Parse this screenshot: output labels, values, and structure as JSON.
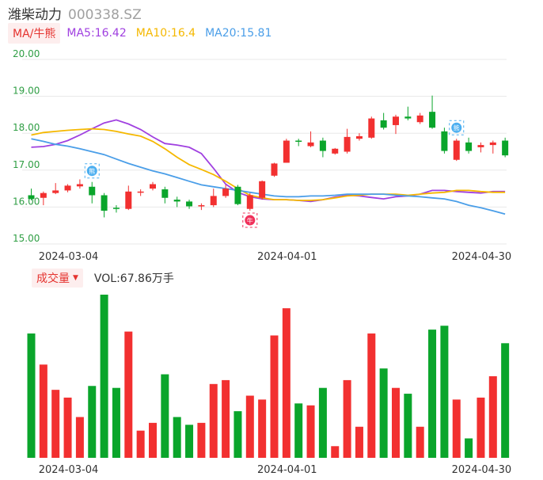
{
  "header": {
    "stock_name": "潍柴动力",
    "stock_code": "000338.SZ"
  },
  "ma_legend": {
    "label": "MA/牛熊",
    "ma5": "MA5:16.42",
    "ma10": "MA10:16.4",
    "ma20": "MA20:15.81",
    "ma5_color": "#a040e0",
    "ma10_color": "#f5b800",
    "ma20_color": "#4a9ee8"
  },
  "volume_legend": {
    "label": "成交量",
    "value": "VOL:67.86万手"
  },
  "colors": {
    "up": "#f23030",
    "down": "#0aa52b"
  },
  "signals": [
    {
      "index": 5,
      "text": "熊",
      "color": "#4aaef0"
    },
    {
      "index": 18,
      "text": "牛",
      "color": "#f0305a"
    },
    {
      "index": 35,
      "text": "熊",
      "color": "#4aaef0"
    }
  ],
  "chart_data": [
    {
      "type": "candlestick",
      "y_ticks": [
        "20.00",
        "19.00",
        "18.00",
        "17.00",
        "16.00",
        "15.00"
      ],
      "ylim": [
        15,
        20
      ],
      "x_tick_labels": [
        "2024-03-04",
        "2024-04-01",
        "2024-04-30"
      ],
      "x_tick_indices": [
        0,
        18,
        34
      ],
      "candles": [
        {
          "o": 16.32,
          "h": 16.5,
          "l": 16.18,
          "c": 16.22
        },
        {
          "o": 16.25,
          "h": 16.42,
          "l": 16.05,
          "c": 16.38
        },
        {
          "o": 16.38,
          "h": 16.65,
          "l": 16.35,
          "c": 16.45
        },
        {
          "o": 16.45,
          "h": 16.62,
          "l": 16.4,
          "c": 16.58
        },
        {
          "o": 16.56,
          "h": 16.75,
          "l": 16.5,
          "c": 16.62
        },
        {
          "o": 16.55,
          "h": 16.68,
          "l": 16.1,
          "c": 16.32
        },
        {
          "o": 16.32,
          "h": 16.38,
          "l": 15.72,
          "c": 15.9
        },
        {
          "o": 15.98,
          "h": 16.05,
          "l": 15.85,
          "c": 15.95
        },
        {
          "o": 15.95,
          "h": 16.58,
          "l": 15.92,
          "c": 16.42
        },
        {
          "o": 16.4,
          "h": 16.48,
          "l": 16.3,
          "c": 16.42
        },
        {
          "o": 16.5,
          "h": 16.68,
          "l": 16.45,
          "c": 16.62
        },
        {
          "o": 16.48,
          "h": 16.55,
          "l": 16.1,
          "c": 16.25
        },
        {
          "o": 16.2,
          "h": 16.28,
          "l": 16.0,
          "c": 16.15
        },
        {
          "o": 16.15,
          "h": 16.2,
          "l": 15.95,
          "c": 16.02
        },
        {
          "o": 16.05,
          "h": 16.1,
          "l": 15.92,
          "c": 16.05
        },
        {
          "o": 16.05,
          "h": 16.5,
          "l": 16.0,
          "c": 16.3
        },
        {
          "o": 16.3,
          "h": 16.6,
          "l": 16.25,
          "c": 16.5
        },
        {
          "o": 16.55,
          "h": 16.6,
          "l": 16.05,
          "c": 16.08
        },
        {
          "o": 15.95,
          "h": 16.38,
          "l": 15.9,
          "c": 16.32
        },
        {
          "o": 16.25,
          "h": 16.72,
          "l": 16.2,
          "c": 16.7
        },
        {
          "o": 16.85,
          "h": 17.2,
          "l": 16.82,
          "c": 17.18
        },
        {
          "o": 17.2,
          "h": 17.85,
          "l": 17.2,
          "c": 17.8
        },
        {
          "o": 17.8,
          "h": 17.85,
          "l": 17.65,
          "c": 17.78
        },
        {
          "o": 17.65,
          "h": 18.05,
          "l": 17.62,
          "c": 17.75
        },
        {
          "o": 17.8,
          "h": 17.88,
          "l": 17.35,
          "c": 17.52
        },
        {
          "o": 17.45,
          "h": 17.6,
          "l": 17.42,
          "c": 17.58
        },
        {
          "o": 17.5,
          "h": 18.12,
          "l": 17.45,
          "c": 17.9
        },
        {
          "o": 17.85,
          "h": 18.0,
          "l": 17.8,
          "c": 17.92
        },
        {
          "o": 17.88,
          "h": 18.45,
          "l": 17.85,
          "c": 18.4
        },
        {
          "o": 18.35,
          "h": 18.55,
          "l": 18.1,
          "c": 18.15
        },
        {
          "o": 18.22,
          "h": 18.5,
          "l": 17.98,
          "c": 18.45
        },
        {
          "o": 18.45,
          "h": 18.72,
          "l": 18.35,
          "c": 18.4
        },
        {
          "o": 18.3,
          "h": 18.55,
          "l": 18.25,
          "c": 18.48
        },
        {
          "o": 18.58,
          "h": 19.02,
          "l": 18.12,
          "c": 18.15
        },
        {
          "o": 18.05,
          "h": 18.15,
          "l": 17.45,
          "c": 17.52
        },
        {
          "o": 17.28,
          "h": 17.85,
          "l": 17.25,
          "c": 17.8
        },
        {
          "o": 17.75,
          "h": 17.88,
          "l": 17.45,
          "c": 17.52
        },
        {
          "o": 17.62,
          "h": 17.75,
          "l": 17.48,
          "c": 17.68
        },
        {
          "o": 17.68,
          "h": 17.8,
          "l": 17.45,
          "c": 17.75
        },
        {
          "o": 17.8,
          "h": 17.88,
          "l": 17.35,
          "c": 17.4
        }
      ],
      "series": [
        {
          "key": "ma5",
          "values": [
            17.62,
            17.64,
            17.7,
            17.8,
            17.95,
            18.12,
            18.28,
            18.36,
            18.25,
            18.1,
            17.9,
            17.72,
            17.68,
            17.62,
            17.45,
            17.05,
            16.62,
            16.4,
            16.28,
            16.22,
            16.2,
            16.2,
            16.18,
            16.15,
            16.2,
            16.27,
            16.32,
            16.3,
            16.26,
            16.22,
            16.28,
            16.3,
            16.35,
            16.45,
            16.45,
            16.42,
            16.4,
            16.38,
            16.42,
            16.42
          ]
        },
        {
          "key": "ma10",
          "values": [
            17.95,
            18.02,
            18.05,
            18.08,
            18.1,
            18.12,
            18.1,
            18.05,
            17.98,
            17.92,
            17.78,
            17.58,
            17.35,
            17.15,
            17.02,
            16.88,
            16.7,
            16.5,
            16.32,
            16.25,
            16.2,
            16.2,
            16.18,
            16.18,
            16.2,
            16.25,
            16.3,
            16.32,
            16.35,
            16.35,
            16.35,
            16.32,
            16.35,
            16.38,
            16.4,
            16.45,
            16.45,
            16.42,
            16.4,
            16.4
          ]
        },
        {
          "key": "ma20",
          "values": [
            17.85,
            17.78,
            17.7,
            17.65,
            17.58,
            17.5,
            17.42,
            17.3,
            17.18,
            17.08,
            16.98,
            16.9,
            16.8,
            16.7,
            16.6,
            16.55,
            16.5,
            16.45,
            16.4,
            16.35,
            16.3,
            16.28,
            16.28,
            16.3,
            16.3,
            16.32,
            16.35,
            16.35,
            16.35,
            16.35,
            16.32,
            16.3,
            16.28,
            16.25,
            16.22,
            16.15,
            16.05,
            15.98,
            15.9,
            15.81
          ]
        }
      ]
    },
    {
      "type": "bar",
      "title": "成交量",
      "x_tick_labels": [
        "2024-03-04",
        "2024-04-01",
        "2024-04-30"
      ],
      "x_tick_indices": [
        0,
        18,
        34
      ],
      "values": [
        64,
        48,
        35,
        31,
        21,
        37,
        84,
        36,
        65,
        14,
        18,
        43,
        21,
        17,
        18,
        38,
        40,
        24,
        32,
        30,
        63,
        77,
        28,
        27,
        36,
        6,
        40,
        16,
        64,
        46,
        36,
        33,
        16,
        66,
        68,
        30,
        10,
        31,
        42,
        59
      ]
    }
  ]
}
